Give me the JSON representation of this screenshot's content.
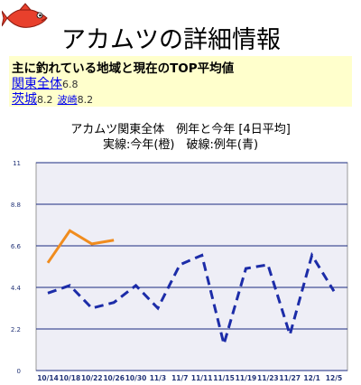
{
  "header": {
    "title": "アカムツの詳細情報"
  },
  "summary": {
    "heading": "主に釣れている地域と現在のTOP平均値",
    "rows": [
      [
        {
          "name": "関東全体",
          "value": 6.8
        }
      ],
      [
        {
          "name": "茨城",
          "value": 8.2
        },
        {
          "name": "波崎",
          "value": 8.2
        }
      ]
    ]
  },
  "chart_data": {
    "type": "line",
    "title": "アカムツ関東全体　例年と今年 [4日平均]",
    "subtitle": "実線:今年(橙)　破線:例年(青)",
    "categories": [
      "10/14",
      "10/18",
      "10/22",
      "10/26",
      "10/30",
      "11/3",
      "11/7",
      "11/11",
      "11/15",
      "11/19",
      "11/23",
      "11/27",
      "12/1",
      "12/5"
    ],
    "series": [
      {
        "color": "#f08c1e",
        "dashed": false,
        "values": [
          5.7,
          7.4,
          6.7,
          6.9,
          null,
          null,
          null,
          null,
          null,
          null,
          null,
          null,
          null,
          null
        ]
      },
      {
        "color": "#1c2ca8",
        "dashed": true,
        "values": [
          4.1,
          4.5,
          3.3,
          3.6,
          4.5,
          3.3,
          5.6,
          6.1,
          1.4,
          5.4,
          5.6,
          1.9,
          6.1,
          4.2
        ]
      }
    ],
    "ylim": [
      0,
      11
    ],
    "yticks": [
      0,
      2.2,
      4.4,
      6.6,
      8.8,
      11
    ],
    "grid": true
  }
}
